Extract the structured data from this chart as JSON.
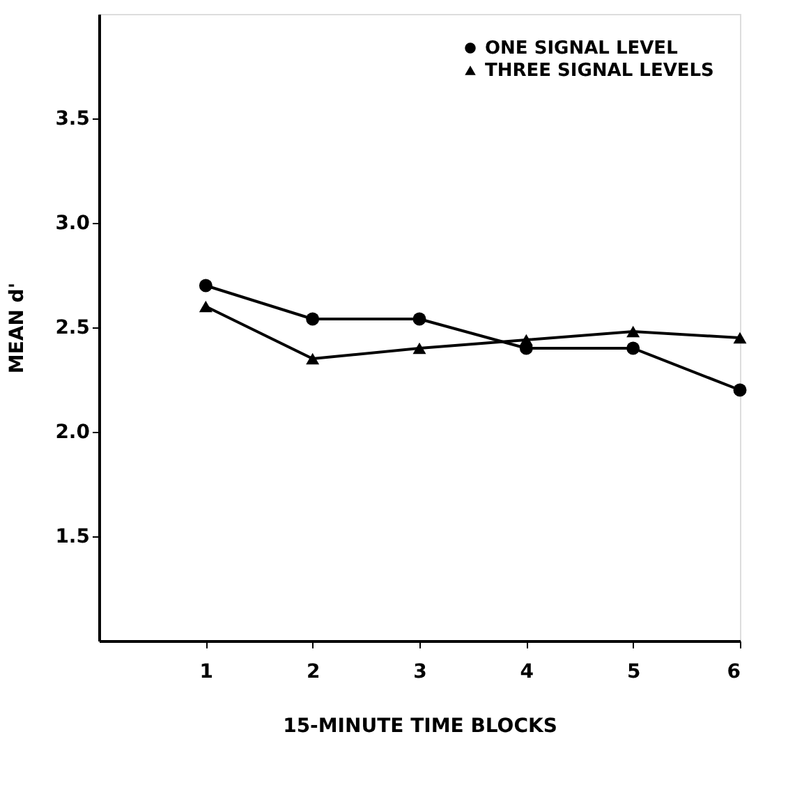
{
  "chart_data": {
    "type": "line",
    "xlabel": "15-MINUTE TIME BLOCKS",
    "ylabel": "MEAN d'",
    "x": [
      1,
      2,
      3,
      4,
      5,
      6
    ],
    "series": [
      {
        "name": "ONE SIGNAL LEVEL",
        "color": "#000000",
        "marker": "circle",
        "values": [
          2.7,
          2.54,
          2.54,
          2.4,
          2.4,
          2.2
        ]
      },
      {
        "name": "THREE SIGNAL LEVELS",
        "color": "#000000",
        "marker": "triangle",
        "values": [
          2.6,
          2.35,
          2.4,
          2.44,
          2.48,
          2.45
        ]
      }
    ],
    "xlim": [
      0,
      6
    ],
    "xticks": [
      1,
      2,
      3,
      4,
      5,
      6
    ],
    "ylim": [
      1.0,
      4.0
    ],
    "yticks": [
      1.5,
      {
        "value": 2.0,
        "label": "2.0"
      },
      2.5,
      {
        "value": 3.0,
        "label": "3.0"
      },
      3.5
    ],
    "grid": false,
    "legend": "top right",
    "line_style": "solid"
  }
}
